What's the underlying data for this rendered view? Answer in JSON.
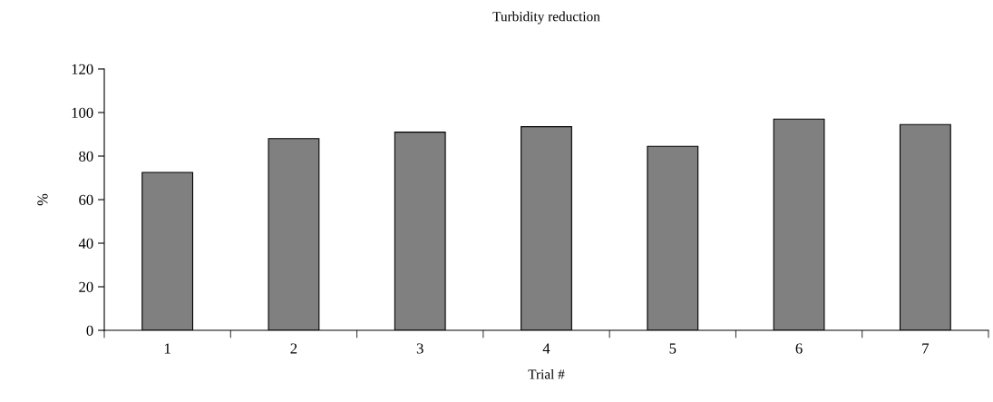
{
  "chart_data": {
    "type": "bar",
    "title": "Turbidity reduction",
    "xlabel": "Trial #",
    "ylabel": "%",
    "categories": [
      "1",
      "2",
      "3",
      "4",
      "5",
      "6",
      "7"
    ],
    "values": [
      72.5,
      88,
      91,
      93.5,
      84.5,
      97,
      94.5
    ],
    "color": "#808080",
    "ylim": [
      0,
      120
    ],
    "yticks": [
      0,
      20,
      40,
      60,
      80,
      100,
      120
    ],
    "grid": false,
    "legend": false
  }
}
